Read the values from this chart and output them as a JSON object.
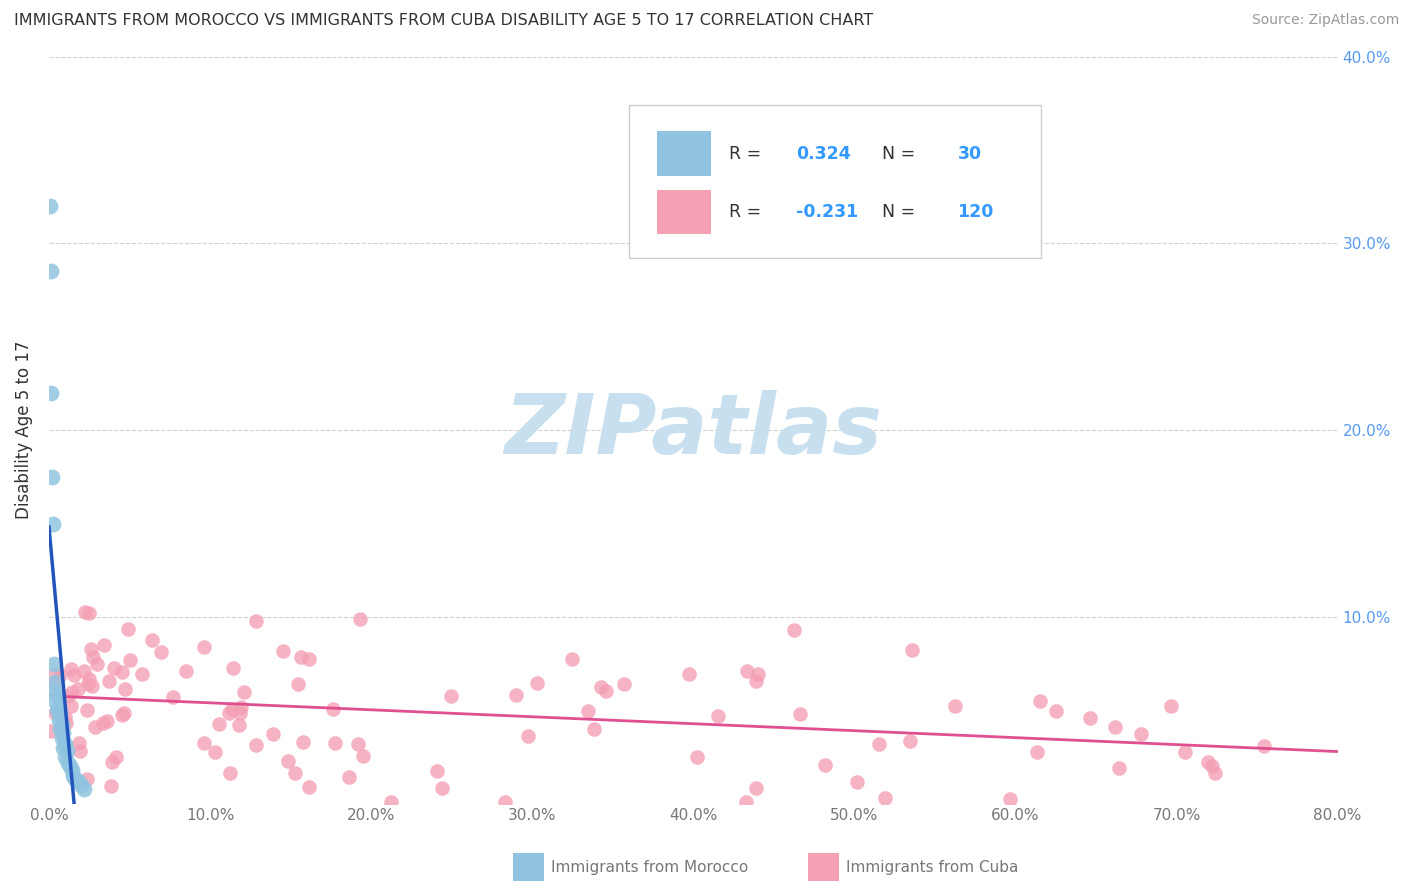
{
  "title": "IMMIGRANTS FROM MOROCCO VS IMMIGRANTS FROM CUBA DISABILITY AGE 5 TO 17 CORRELATION CHART",
  "source": "Source: ZipAtlas.com",
  "ylabel": "Disability Age 5 to 17",
  "xlim": [
    0.0,
    0.8
  ],
  "ylim": [
    0.0,
    0.4
  ],
  "xticks": [
    0.0,
    0.1,
    0.2,
    0.3,
    0.4,
    0.5,
    0.6,
    0.7,
    0.8
  ],
  "xticklabels": [
    "0.0%",
    "10.0%",
    "20.0%",
    "30.0%",
    "40.0%",
    "50.0%",
    "60.0%",
    "70.0%",
    "80.0%"
  ],
  "yticks": [
    0.0,
    0.1,
    0.2,
    0.3,
    0.4
  ],
  "ylabels_right": [
    "",
    "10.0%",
    "20.0%",
    "30.0%",
    "40.0%"
  ],
  "morocco_color": "#90C4E0",
  "cuba_color": "#F4A0B5",
  "morocco_line_color": "#2255BB",
  "cuba_line_color": "#E05090",
  "dash_line_color": "#99BBDD",
  "morocco_R": "0.324",
  "morocco_N": "30",
  "cuba_R": "-0.231",
  "cuba_N": "120",
  "R_label_color": "#333333",
  "RN_value_color": "#3399FF",
  "watermark_color": "#C8DFF0",
  "background_color": "#ffffff",
  "grid_color": "#CCCCCC",
  "title_color": "#333333",
  "source_color": "#999999",
  "ylabel_color": "#333333",
  "xtick_color": "#777777",
  "ytick_right_color": "#5599EE",
  "legend_edge_color": "#CCCCCC",
  "bottom_label_color": "#777777"
}
